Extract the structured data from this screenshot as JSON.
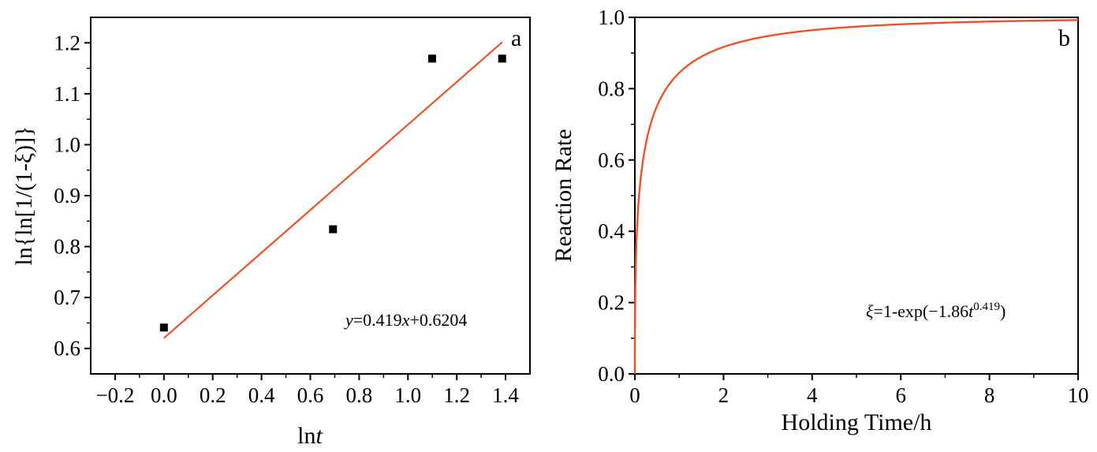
{
  "chart_data": [
    {
      "type": "scatter",
      "panel_label": "a",
      "xlabel_main": "ln",
      "xlabel_italic": "t",
      "ylabel": "ln{ln[1/(1-ξ)]}",
      "xlim": [
        -0.3,
        1.5
      ],
      "ylim": [
        0.55,
        1.25
      ],
      "xticks": [
        -0.2,
        0.0,
        0.2,
        0.4,
        0.6,
        0.8,
        1.0,
        1.2,
        1.4
      ],
      "xtick_labels": [
        "−0.2",
        "0.0",
        "0.2",
        "0.4",
        "0.6",
        "0.8",
        "1.0",
        "1.2",
        "1.4"
      ],
      "yticks": [
        0.6,
        0.7,
        0.8,
        0.9,
        1.0,
        1.1,
        1.2
      ],
      "ytick_labels": [
        "0.6",
        "0.7",
        "0.8",
        "0.9",
        "1.0",
        "1.1",
        "1.2"
      ],
      "points": [
        {
          "x": 0.0,
          "y": 0.641
        },
        {
          "x": 0.693,
          "y": 0.834
        },
        {
          "x": 1.099,
          "y": 1.169
        },
        {
          "x": 1.386,
          "y": 1.169
        }
      ],
      "fit": {
        "slope": 0.419,
        "intercept": 0.6204,
        "x_range": [
          0.0,
          1.386
        ],
        "color": "#e8532a"
      },
      "equation": {
        "y": "y",
        "eq1": "=0.419",
        "x": "x",
        "eq2": "+0.6204"
      },
      "marker_color": "#000000",
      "grid": false
    },
    {
      "type": "line",
      "panel_label": "b",
      "xlabel": "Holding Time/h",
      "ylabel": "Reaction Rate",
      "xlim": [
        0,
        10
      ],
      "ylim": [
        0.0,
        1.0
      ],
      "xticks": [
        0,
        2,
        4,
        6,
        8,
        10
      ],
      "xtick_labels": [
        "0",
        "2",
        "4",
        "6",
        "8",
        "10"
      ],
      "yticks": [
        0.0,
        0.2,
        0.4,
        0.6,
        0.8,
        1.0
      ],
      "ytick_labels": [
        "0.0",
        "0.2",
        "0.4",
        "0.6",
        "0.8",
        "1.0"
      ],
      "model": {
        "k": 1.86,
        "n": 0.419,
        "color": "#e8532a"
      },
      "equation": {
        "xi": "ξ",
        "eq1": "=1-exp(−1.86",
        "t": "t",
        "exp": "0.419",
        "close": ")"
      },
      "grid": false
    }
  ]
}
